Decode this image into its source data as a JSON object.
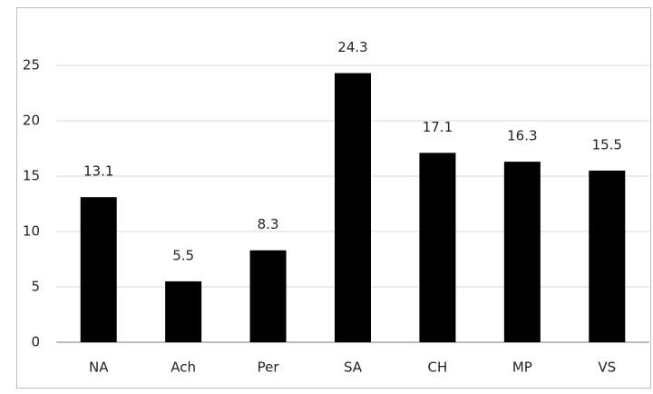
{
  "chart_data": {
    "type": "bar",
    "categories": [
      "NA",
      "Ach",
      "Per",
      "SA",
      "CH",
      "MP",
      "VS"
    ],
    "values": [
      13.1,
      5.5,
      8.3,
      24.3,
      17.1,
      16.3,
      15.5
    ],
    "color": "#000000",
    "ylim": [
      0,
      25
    ],
    "yticks": [
      0,
      5,
      10,
      15,
      20,
      25
    ],
    "grid": true
  }
}
